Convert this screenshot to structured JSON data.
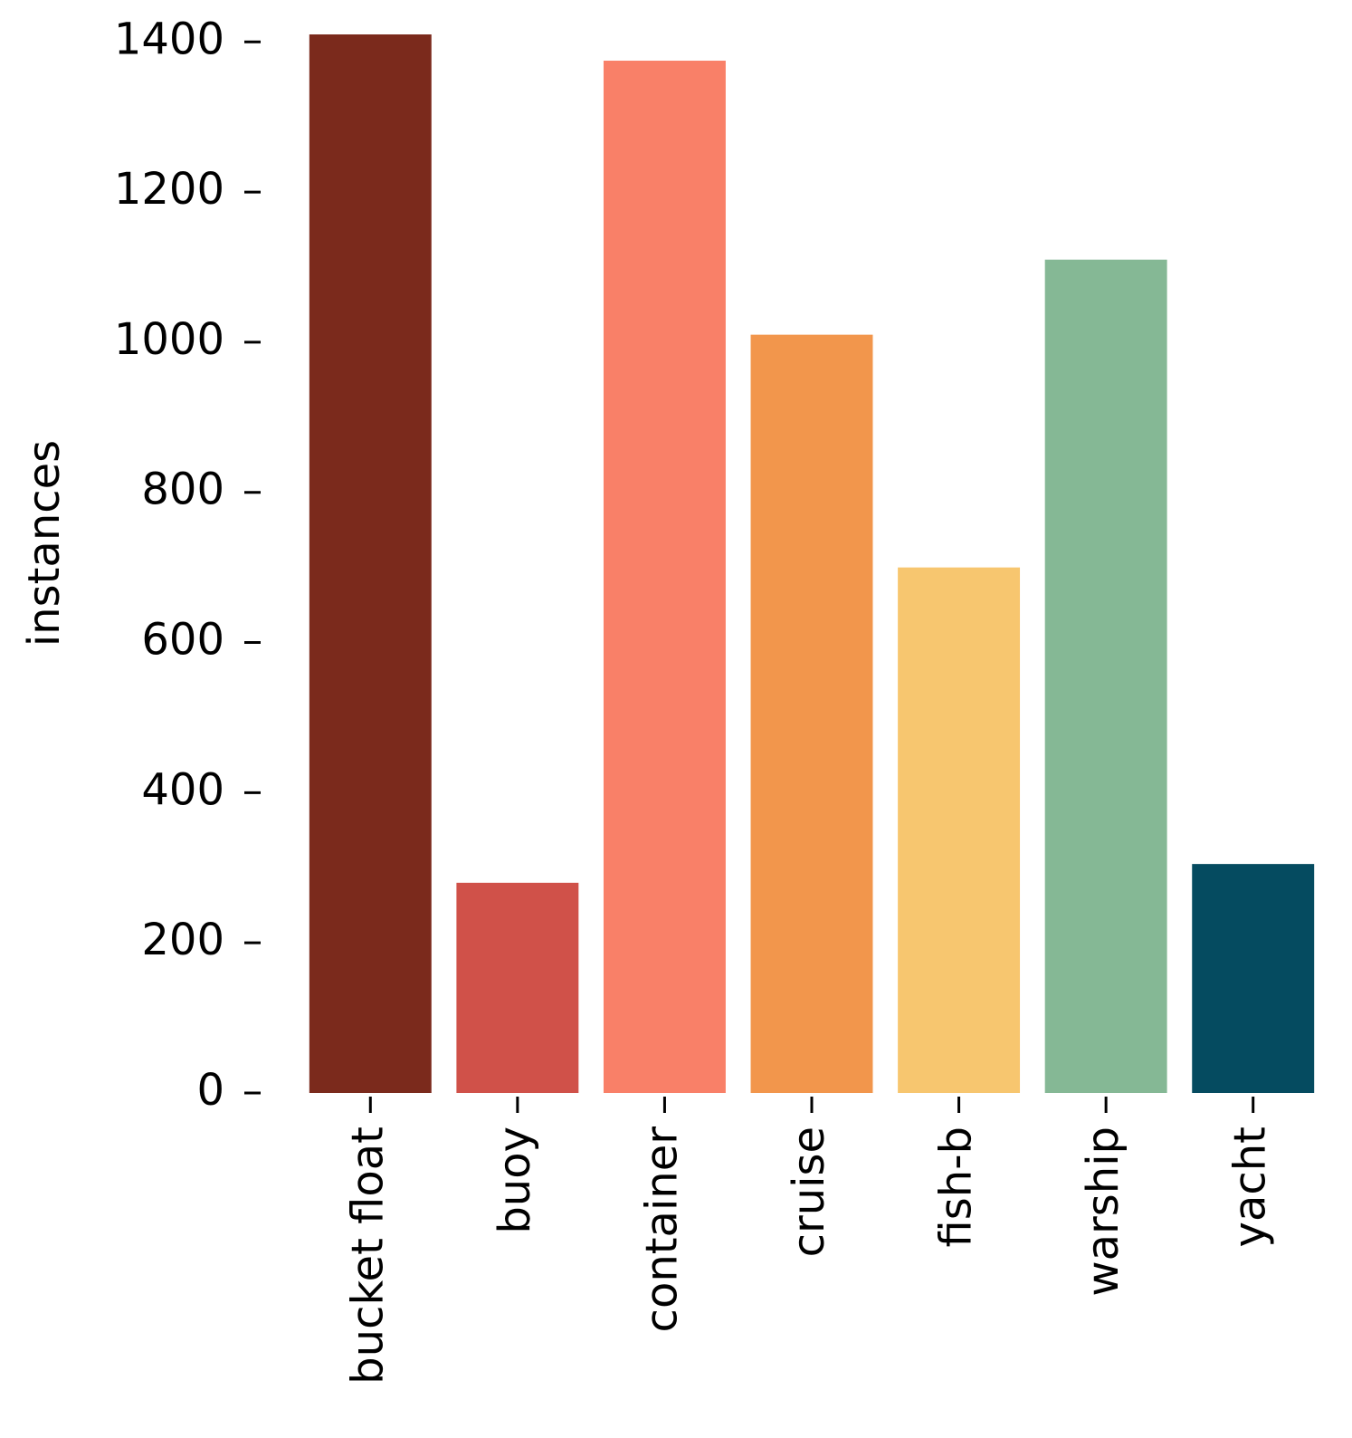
{
  "chart_data": {
    "type": "bar",
    "ylabel": "instances",
    "categories": [
      "bucket float",
      "buoy",
      "container",
      "cruise",
      "fish-b",
      "warship",
      "yacht"
    ],
    "values": [
      1410,
      280,
      1375,
      1010,
      700,
      1110,
      305
    ],
    "colors": [
      "#7b2a1c",
      "#d05149",
      "#f98068",
      "#f2964c",
      "#f7c66f",
      "#85b895",
      "#054b60"
    ],
    "ylim": [
      0,
      1410
    ],
    "yticks": [
      0,
      200,
      400,
      600,
      800,
      1000,
      1200,
      1400
    ],
    "grid": false
  }
}
